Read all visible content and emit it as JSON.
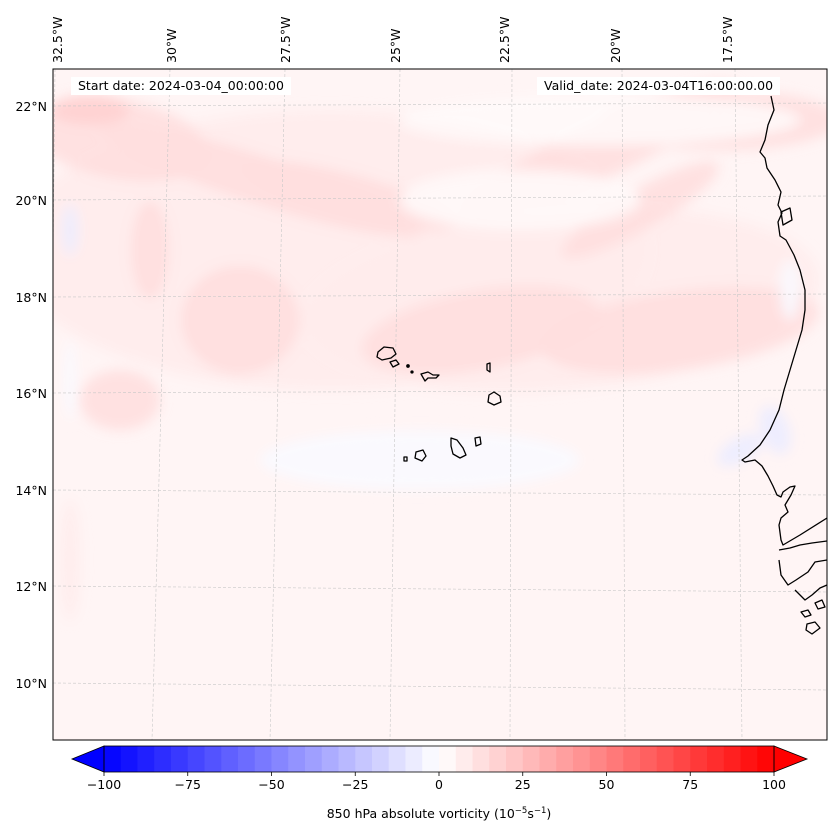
{
  "chart_data": {
    "type": "heatmap",
    "title": "",
    "variable": "850 hPa absolute vorticity",
    "units_label": "850 hPa absolute vorticity (10^-5 s^-1)",
    "annotations": {
      "start_date": "Start date: 2024-03-04_00:00:00",
      "valid_date": "Valid_date: 2024-03-04T16:00:00.00"
    },
    "longitude_ticks": [
      "32.5°W",
      "30°W",
      "27.5°W",
      "25°W",
      "22.5°W",
      "20°W",
      "17.5°W"
    ],
    "longitude_values": [
      -32.5,
      -30,
      -27.5,
      -25,
      -22.5,
      -20,
      -17.5
    ],
    "latitude_ticks": [
      "22°N",
      "20°N",
      "18°N",
      "16°N",
      "14°N",
      "12°N",
      "10°N"
    ],
    "latitude_values": [
      22,
      20,
      18,
      16,
      14,
      12,
      10
    ],
    "extent": {
      "lon": [
        -33,
        -16
      ],
      "lat": [
        8.9,
        22.8
      ]
    },
    "grid": true,
    "colorbar": {
      "cmap": "bwr",
      "vmin": -100,
      "vmax": 100,
      "level_step": 5,
      "extend": "both",
      "orientation": "horizontal",
      "placement": "bottom",
      "ticks": [
        -100,
        -75,
        -50,
        -25,
        0,
        25,
        50,
        75,
        100
      ],
      "tick_labels": [
        "−100",
        "−75",
        "−50",
        "−25",
        "0",
        "25",
        "50",
        "75",
        "100"
      ],
      "label_prefix": "850 hPa absolute vorticity (10",
      "label_exp1": "−5",
      "label_mid": "s",
      "label_exp2": "−1",
      "label_suffix": ")"
    },
    "field_summary": "Mostly weak positive vorticity (0 to ~15) across the domain; slightly stronger positive bands (~10-20) in the northwest; weak negative patches (~ -5 to -10) along the African coast near 15-16°N and near the western edge",
    "coastlines": [
      "Cape Verde Islands",
      "West African coast (Mauritania, Senegal, Gambia, Guinea-Bissau)"
    ]
  }
}
